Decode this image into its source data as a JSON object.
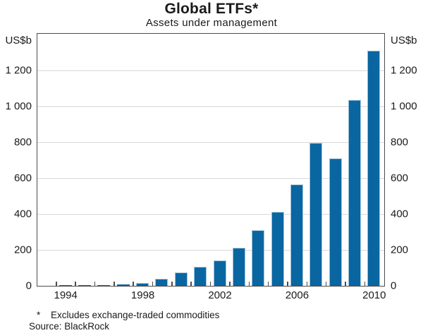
{
  "chart_data": {
    "type": "bar",
    "title": "Global ETFs*",
    "subtitle": "Assets under management",
    "axis_unit": "US$b",
    "categories": [
      1994,
      1995,
      1996,
      1997,
      1998,
      1999,
      2000,
      2001,
      2002,
      2003,
      2004,
      2005,
      2006,
      2007,
      2008,
      2009,
      2010
    ],
    "values": [
      1.1,
      2.3,
      5.3,
      8.2,
      17.6,
      39.6,
      74.3,
      104.8,
      141.6,
      212,
      310,
      412,
      566,
      797,
      711,
      1036,
      1311
    ],
    "x_axis_labels": [
      "1994",
      "1998",
      "2002",
      "2006",
      "2010"
    ],
    "y_ticks": [
      0,
      200,
      400,
      600,
      800,
      1000,
      1200
    ],
    "y_tick_labels": [
      "0",
      "200",
      "400",
      "600",
      "800",
      "1 000",
      "1 200"
    ],
    "ylim": [
      0,
      1400
    ],
    "grid": "horizontal",
    "legend": "none",
    "bar_color": "#0a66a1",
    "bar_edge_color": "#9cc3dc",
    "frame_color": "#4c4c4c",
    "gridline_color": "#d8d8d8",
    "footnote_marker": "*",
    "footnote": "Excludes exchange-traded commodities",
    "source": "Source: BlackRock"
  }
}
